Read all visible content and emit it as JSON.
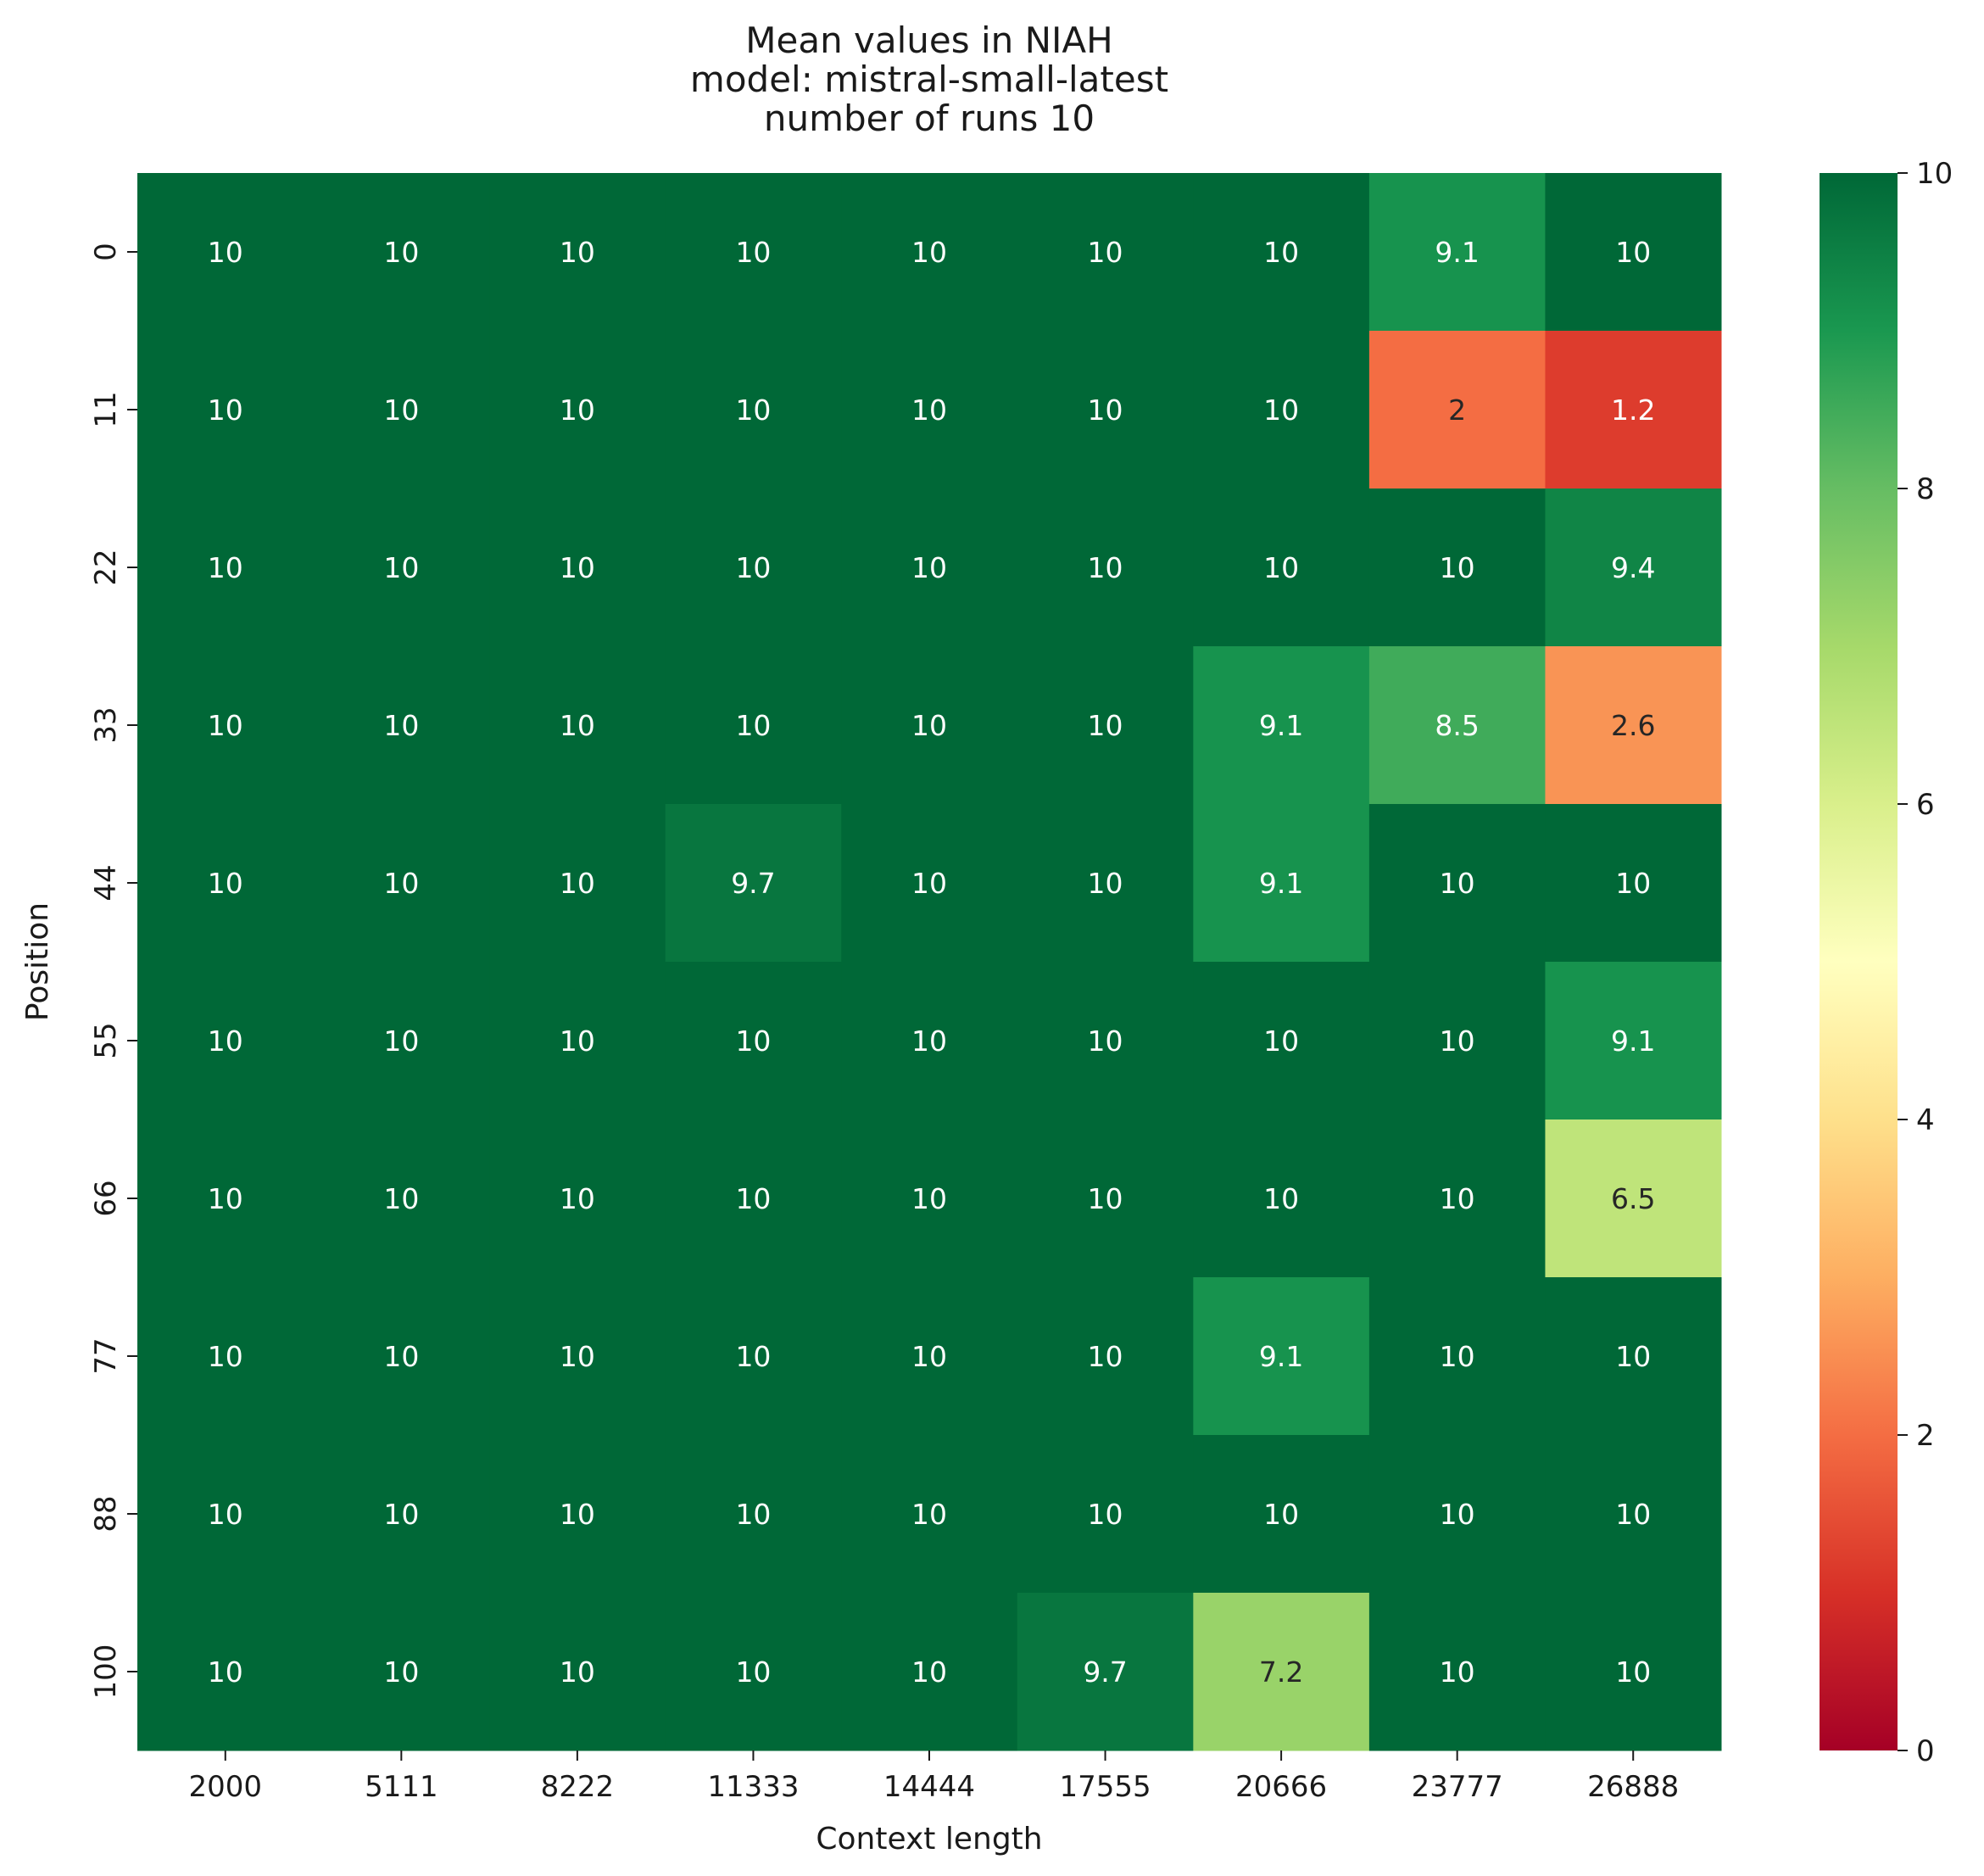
{
  "chart_data": {
    "type": "heatmap",
    "title_lines": [
      "Mean values in NIAH",
      "model: mistral-small-latest",
      "number of runs 10"
    ],
    "xlabel": "Context length",
    "ylabel": "Position",
    "x": [
      "2000",
      "5111",
      "8222",
      "11333",
      "14444",
      "17555",
      "20666",
      "23777",
      "26888"
    ],
    "y": [
      "0",
      "11",
      "22",
      "33",
      "44",
      "55",
      "66",
      "77",
      "88",
      "100"
    ],
    "values": [
      [
        10,
        10,
        10,
        10,
        10,
        10,
        10,
        9.1,
        10
      ],
      [
        10,
        10,
        10,
        10,
        10,
        10,
        10,
        2,
        1.2
      ],
      [
        10,
        10,
        10,
        10,
        10,
        10,
        10,
        10,
        9.4
      ],
      [
        10,
        10,
        10,
        10,
        10,
        10,
        9.1,
        8.5,
        2.6
      ],
      [
        10,
        10,
        10,
        9.7,
        10,
        10,
        9.1,
        10,
        10
      ],
      [
        10,
        10,
        10,
        10,
        10,
        10,
        10,
        10,
        9.1
      ],
      [
        10,
        10,
        10,
        10,
        10,
        10,
        10,
        10,
        6.5
      ],
      [
        10,
        10,
        10,
        10,
        10,
        10,
        9.1,
        10,
        10
      ],
      [
        10,
        10,
        10,
        10,
        10,
        10,
        10,
        10,
        10
      ],
      [
        10,
        10,
        10,
        10,
        10,
        9.7,
        7.2,
        10,
        10
      ]
    ],
    "colormap": "RdYlGn",
    "vmin": 0,
    "vmax": 10,
    "colorbar_ticks": [
      "0",
      "2",
      "4",
      "6",
      "8",
      "10"
    ],
    "grid": false
  }
}
